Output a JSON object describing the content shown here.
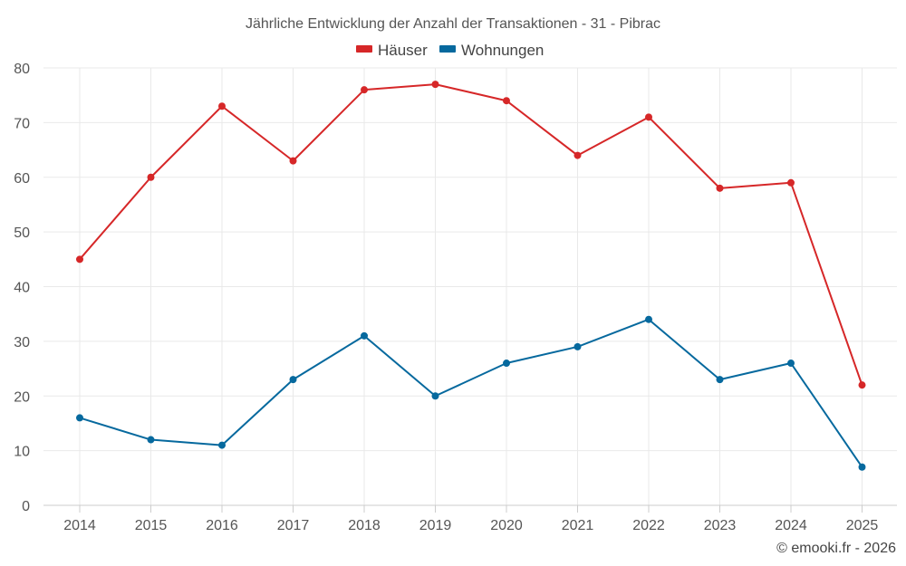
{
  "chart_data": {
    "type": "line",
    "title": "Jährliche Entwicklung der Anzahl der Transaktionen - 31 - Pibrac",
    "x": [
      "2014",
      "2015",
      "2016",
      "2017",
      "2018",
      "2019",
      "2020",
      "2021",
      "2022",
      "2023",
      "2024",
      "2025"
    ],
    "series": [
      {
        "name": "Häuser",
        "color": "#d62728",
        "values": [
          45,
          60,
          73,
          63,
          76,
          77,
          74,
          64,
          71,
          58,
          59,
          22
        ]
      },
      {
        "name": "Wohnungen",
        "color": "#06699e",
        "values": [
          16,
          12,
          11,
          23,
          31,
          20,
          26,
          29,
          34,
          23,
          26,
          7
        ]
      }
    ],
    "ylim": [
      0,
      80
    ],
    "yticks": [
      0,
      10,
      20,
      30,
      40,
      50,
      60,
      70,
      80
    ],
    "grid": true,
    "legend": "top-center",
    "xlabel": "",
    "ylabel": ""
  },
  "credit": "© emooki.fr - 2026"
}
